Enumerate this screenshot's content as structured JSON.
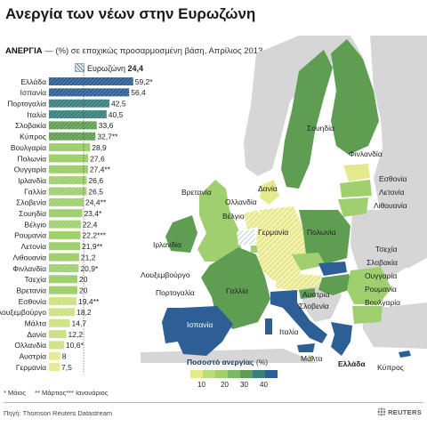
{
  "title": "Ανεργία των νέων στην Ευρωζώνη",
  "subtitle": {
    "bold": "ΑΝΕΡΓΙΑ",
    "rest": " — (%) σε εποχικώς προσαρμοσμένη βάση, Απρίλιος 2013"
  },
  "eurozone": {
    "label": "Ευρωζώνη",
    "value": "24,4"
  },
  "colors": {
    "c10": "#e4ea8c",
    "c20": "#9fcf6f",
    "c30": "#5f9e52",
    "c40": "#3a7e7e",
    "c50": "#2d5f96",
    "hatch": "#8aa0b8",
    "sea": "#ffffff",
    "outside": "#d6d6d6"
  },
  "chart_data": {
    "type": "bar",
    "orientation": "horizontal",
    "title": "Ανεργία των νέων στην Ευρωζώνη",
    "subtitle": "ΑΝΕΡΓΙΑ — (%) σε εποχικώς προσαρμοσμένη βάση, Απρίλιος 2013",
    "reference_line": {
      "label": "Ευρωζώνη",
      "value": 24.4
    },
    "categories": [
      "Ελλάδα",
      "Ισπανία",
      "Πορτογαλία",
      "Ιταλία",
      "Σλοβακία",
      "Κύπρος",
      "Βουλγαρία",
      "Πολωνία",
      "Ουγγαρία",
      "Ιρλανδία",
      "Γαλλία",
      "Σλοβενία",
      "Σουηδία",
      "Βέλγιο",
      "Ρουμανία",
      "Λετονία",
      "Λιθουανία",
      "Φινλανδία",
      "Τσεχία",
      "Βρετανία",
      "Εσθονία",
      "Λουξεμβούργο",
      "Μάλτα",
      "Δανία",
      "Ολλανδία",
      "Αυστρία",
      "Γερμανία"
    ],
    "values": [
      59.2,
      56.4,
      42.5,
      40.5,
      33.6,
      32.7,
      28.9,
      27.6,
      27.4,
      26.6,
      26.5,
      24.4,
      23.4,
      22.4,
      22.2,
      21.9,
      21.2,
      20.9,
      20,
      20,
      19.4,
      18.2,
      14.7,
      12.2,
      10.6,
      8,
      7.5
    ],
    "value_labels": [
      "59,2*",
      "56,4",
      "42,5",
      "40,5",
      "33,6",
      "32,7**",
      "28,9",
      "27,6",
      "27,4**",
      "26,6",
      "26,5",
      "24,4**",
      "23,4*",
      "22,4",
      "22,2***",
      "21,9**",
      "21,2",
      "20,9*",
      "20",
      "20",
      "19,4**",
      "18,2",
      "14,7",
      "12,2",
      "10,6*",
      "8",
      "7,5"
    ],
    "eurozone_member": [
      true,
      true,
      true,
      true,
      true,
      true,
      false,
      false,
      false,
      true,
      true,
      true,
      false,
      true,
      false,
      false,
      false,
      true,
      false,
      false,
      true,
      true,
      true,
      false,
      true,
      true,
      true
    ],
    "xlim": [
      0,
      60
    ],
    "legend": {
      "title": "Ποσοστό ανεργίας",
      "unit": "(%)",
      "ticks": [
        "10",
        "20",
        "30",
        "40"
      ]
    }
  },
  "map_labels": {
    "sweden": "Σουηδία",
    "finland": "Φινλανδία",
    "estonia": "Εσθονία",
    "latvia": "Λετονία",
    "lithuania": "Λιθουανία",
    "britain": "Βρετανία",
    "denmark": "Δανία",
    "netherlands": "Ολλανδία",
    "belgium": "Βέλγιο",
    "ireland": "Ιρλανδία",
    "germany": "Γερμανία",
    "poland": "Πολωνία",
    "czech": "Τσεχία",
    "slovakia": "Σλοβακία",
    "luxembourg": "Λουξεμβούργο",
    "hungary": "Ουγγαρία",
    "romania": "Ρουμανία",
    "bulgaria": "Βουλγαρία",
    "portugal": "Πορτογαλία",
    "france": "Γαλλία",
    "austria": "Αυστρία",
    "slovenia": "Σλοβενία",
    "spain": "Ισπανία",
    "italy": "Ιταλία",
    "malta": "Μάλτα",
    "greece": "Ελλάδα",
    "cyprus": "Κύπρος"
  },
  "notes": [
    "* Μάιος",
    "** Μάρτιος*** Ιανουάριος"
  ],
  "source": "Πηγή: Thomson Reuters Datastream",
  "brand": "REUTERS"
}
